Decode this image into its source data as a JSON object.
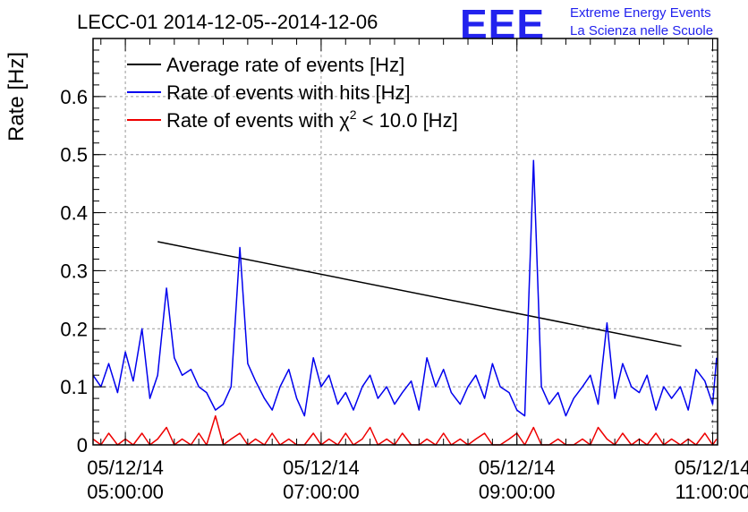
{
  "chart_data": {
    "type": "line",
    "title": "LECC-01 2014-12-05--2014-12-06",
    "logo": {
      "letters": "EEE",
      "line1": "Extreme Energy Events",
      "line2": "La Scienza nelle Scuole",
      "color": "#2222ee"
    },
    "ylabel": "Rate [Hz]",
    "xlabel": "",
    "xlim_hours": [
      4.67,
      11.05
    ],
    "ylim": [
      0,
      0.7
    ],
    "yticks": [
      0,
      0.1,
      0.2,
      0.3,
      0.4,
      0.5,
      0.6
    ],
    "ytick_labels": [
      "0",
      "0.1",
      "0.2",
      "0.3",
      "0.4",
      "0.5",
      "0.6"
    ],
    "xticks": [
      {
        "hour": 5,
        "date": "05/12/14",
        "time": "05:00:00"
      },
      {
        "hour": 7,
        "date": "05/12/14",
        "time": "07:00:00"
      },
      {
        "hour": 9,
        "date": "05/12/14",
        "time": "09:00:00"
      },
      {
        "hour": 11,
        "date": "05/12/14",
        "time": "11:00:00"
      }
    ],
    "grid": true,
    "legend_position": "top-left",
    "series": [
      {
        "name": "Average rate of events [Hz]",
        "color": "#000000",
        "x": [
          5.33,
          10.68
        ],
        "y": [
          0.35,
          0.17
        ]
      },
      {
        "name": "Rate of events with hits [Hz]",
        "color": "#0000ee",
        "x": [
          4.67,
          4.75,
          4.83,
          4.92,
          5.0,
          5.08,
          5.17,
          5.25,
          5.33,
          5.42,
          5.5,
          5.58,
          5.67,
          5.75,
          5.83,
          5.92,
          6.0,
          6.08,
          6.17,
          6.25,
          6.33,
          6.42,
          6.5,
          6.58,
          6.67,
          6.75,
          6.83,
          6.92,
          7.0,
          7.08,
          7.17,
          7.25,
          7.33,
          7.42,
          7.5,
          7.58,
          7.67,
          7.75,
          7.83,
          7.92,
          8.0,
          8.08,
          8.17,
          8.25,
          8.33,
          8.42,
          8.5,
          8.58,
          8.67,
          8.75,
          8.83,
          8.92,
          9.0,
          9.08,
          9.17,
          9.25,
          9.33,
          9.42,
          9.5,
          9.58,
          9.67,
          9.75,
          9.83,
          9.92,
          10.0,
          10.08,
          10.17,
          10.25,
          10.33,
          10.42,
          10.5,
          10.58,
          10.67,
          10.75,
          10.83,
          10.92,
          11.0,
          11.04
        ],
        "y": [
          0.12,
          0.1,
          0.14,
          0.09,
          0.16,
          0.11,
          0.2,
          0.08,
          0.12,
          0.27,
          0.15,
          0.12,
          0.13,
          0.1,
          0.09,
          0.06,
          0.07,
          0.1,
          0.34,
          0.14,
          0.11,
          0.08,
          0.06,
          0.1,
          0.13,
          0.08,
          0.05,
          0.15,
          0.1,
          0.12,
          0.07,
          0.09,
          0.06,
          0.1,
          0.12,
          0.08,
          0.1,
          0.07,
          0.09,
          0.11,
          0.06,
          0.15,
          0.1,
          0.13,
          0.09,
          0.07,
          0.1,
          0.12,
          0.08,
          0.14,
          0.1,
          0.09,
          0.06,
          0.05,
          0.49,
          0.1,
          0.07,
          0.09,
          0.05,
          0.08,
          0.1,
          0.12,
          0.07,
          0.21,
          0.08,
          0.14,
          0.1,
          0.09,
          0.12,
          0.06,
          0.1,
          0.08,
          0.1,
          0.06,
          0.13,
          0.11,
          0.07,
          0.15
        ]
      },
      {
        "name": "Rate of events with χ² < 10.0 [Hz]",
        "legend_prefix": "Rate of events with χ",
        "legend_sup": "2",
        "legend_suffix": " < 10.0 [Hz]",
        "color": "#ee0000",
        "x": [
          4.67,
          4.75,
          4.83,
          4.92,
          5.0,
          5.08,
          5.17,
          5.25,
          5.33,
          5.42,
          5.5,
          5.58,
          5.67,
          5.75,
          5.83,
          5.92,
          6.0,
          6.08,
          6.17,
          6.25,
          6.33,
          6.42,
          6.5,
          6.58,
          6.67,
          6.75,
          6.83,
          6.92,
          7.0,
          7.08,
          7.17,
          7.25,
          7.33,
          7.42,
          7.5,
          7.58,
          7.67,
          7.75,
          7.83,
          7.92,
          8.0,
          8.08,
          8.17,
          8.25,
          8.33,
          8.42,
          8.5,
          8.58,
          8.67,
          8.75,
          8.83,
          8.92,
          9.0,
          9.08,
          9.17,
          9.25,
          9.33,
          9.42,
          9.5,
          9.58,
          9.67,
          9.75,
          9.83,
          9.92,
          10.0,
          10.08,
          10.17,
          10.25,
          10.33,
          10.42,
          10.5,
          10.58,
          10.67,
          10.75,
          10.83,
          10.92,
          11.0,
          11.04
        ],
        "y": [
          0.01,
          0.0,
          0.02,
          0.0,
          0.01,
          0.0,
          0.02,
          0.0,
          0.01,
          0.03,
          0.0,
          0.01,
          0.0,
          0.02,
          0.0,
          0.05,
          0.0,
          0.01,
          0.02,
          0.0,
          0.01,
          0.0,
          0.02,
          0.0,
          0.01,
          0.0,
          0.0,
          0.02,
          0.0,
          0.01,
          0.0,
          0.02,
          0.0,
          0.01,
          0.03,
          0.0,
          0.01,
          0.0,
          0.02,
          0.0,
          0.0,
          0.01,
          0.0,
          0.02,
          0.0,
          0.01,
          0.0,
          0.01,
          0.02,
          0.0,
          0.0,
          0.01,
          0.02,
          0.0,
          0.03,
          0.0,
          0.0,
          0.01,
          0.0,
          0.0,
          0.01,
          0.0,
          0.03,
          0.01,
          0.0,
          0.02,
          0.0,
          0.01,
          0.0,
          0.02,
          0.0,
          0.01,
          0.0,
          0.01,
          0.0,
          0.02,
          0.0,
          0.01
        ]
      }
    ]
  }
}
